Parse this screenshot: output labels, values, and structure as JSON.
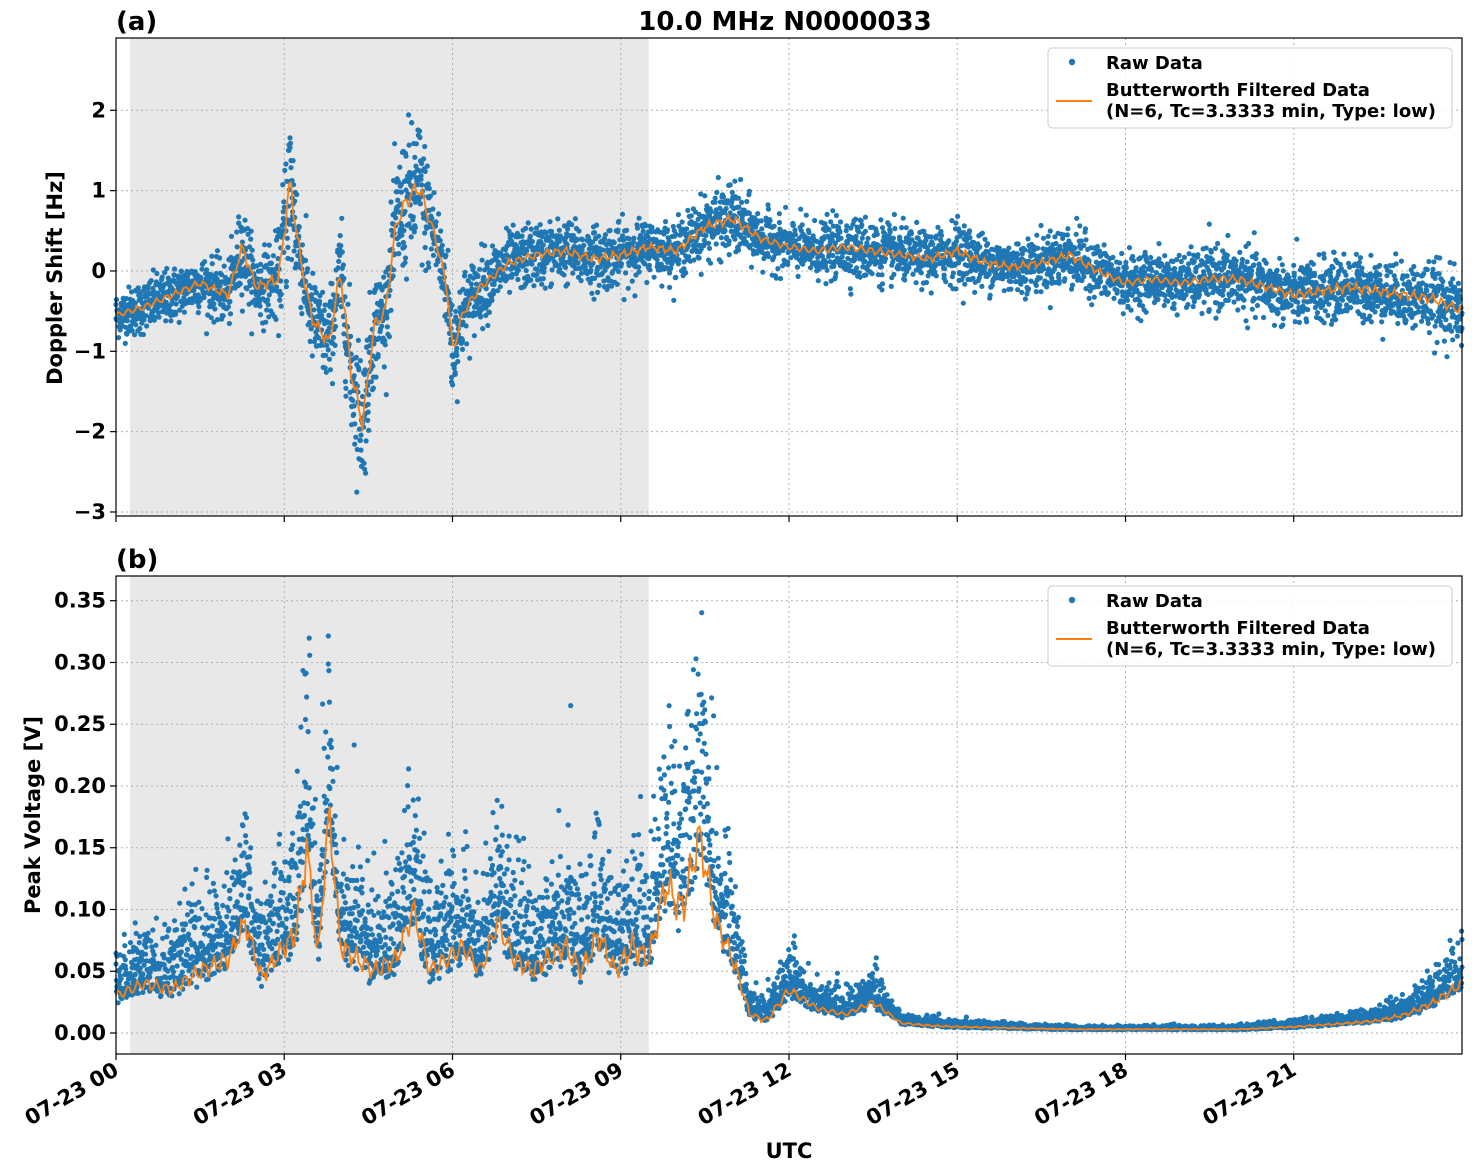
{
  "title": "10.0 MHz N0000033",
  "xlabel": "UTC",
  "colors": {
    "raw": "#1f77b4",
    "filtered": "#ff7f0e",
    "shade": "#e8e8e8"
  },
  "x_ticks": [
    "07-23 00",
    "07-23 03",
    "07-23 06",
    "07-23 09",
    "07-23 12",
    "07-23 15",
    "07-23 18",
    "07-23 21"
  ],
  "legend": {
    "raw": "Raw Data",
    "filtered_line1": "Butterworth Filtered Data",
    "filtered_line2": "(N=6, Tc=3.3333 min, Type: low)"
  },
  "chart_data": [
    {
      "type": "scatter",
      "panel_label": "(a)",
      "ylabel": "Doppler Shift [Hz]",
      "xlim_hours": [
        0,
        24
      ],
      "ylim": [
        -3.05,
        2.9
      ],
      "y_ticks": [
        2,
        1,
        0,
        -1,
        -2,
        -3
      ],
      "y_tick_labels": [
        "2",
        "1",
        "0",
        "−1",
        "−2",
        "−3"
      ],
      "shaded_region_hours": [
        0.25,
        9.5
      ],
      "legend_position": "top-right",
      "series": [
        {
          "name": "Raw Data",
          "style": "points"
        },
        {
          "name": "Butterworth Filtered Data (N=6, Tc=3.3333 min, Type: low)",
          "style": "line"
        }
      ],
      "filtered_profile": {
        "x_hours": [
          0,
          0.5,
          1.0,
          1.5,
          2.0,
          2.25,
          2.5,
          2.9,
          3.1,
          3.3,
          3.5,
          3.8,
          4.0,
          4.2,
          4.4,
          4.6,
          4.8,
          5.0,
          5.2,
          5.4,
          5.7,
          5.9,
          6.0,
          6.2,
          6.5,
          7.0,
          7.5,
          8.0,
          8.5,
          9.0,
          9.5,
          10.0,
          10.5,
          11.0,
          11.5,
          12.0,
          12.5,
          13.0,
          13.5,
          14.0,
          14.5,
          15.0,
          15.5,
          16.0,
          16.5,
          17.0,
          17.5,
          18.0,
          18.5,
          19.0,
          19.5,
          20.0,
          20.5,
          21.0,
          21.5,
          22.0,
          22.5,
          23.0,
          23.5,
          24.0
        ],
        "y": [
          -0.55,
          -0.45,
          -0.3,
          -0.15,
          -0.3,
          0.3,
          -0.2,
          -0.1,
          1.1,
          0.1,
          -0.6,
          -0.9,
          0.0,
          -1.3,
          -1.9,
          -0.7,
          -0.5,
          0.6,
          0.9,
          1.05,
          0.4,
          -0.2,
          -1.0,
          -0.5,
          -0.2,
          0.1,
          0.2,
          0.25,
          0.15,
          0.2,
          0.3,
          0.25,
          0.55,
          0.65,
          0.4,
          0.3,
          0.25,
          0.3,
          0.25,
          0.2,
          0.15,
          0.25,
          0.1,
          0.05,
          0.1,
          0.2,
          0.0,
          -0.15,
          -0.1,
          -0.15,
          -0.1,
          -0.1,
          -0.2,
          -0.3,
          -0.25,
          -0.2,
          -0.25,
          -0.3,
          -0.35,
          -0.5
        ],
        "raw_spread": [
          0.25,
          0.3,
          0.3,
          0.3,
          0.35,
          0.5,
          0.35,
          0.5,
          1.0,
          0.5,
          0.5,
          0.5,
          0.6,
          0.7,
          0.8,
          0.6,
          0.5,
          0.7,
          0.8,
          0.8,
          0.5,
          0.5,
          0.6,
          0.45,
          0.4,
          0.35,
          0.35,
          0.35,
          0.35,
          0.35,
          0.3,
          0.3,
          0.35,
          0.4,
          0.3,
          0.3,
          0.3,
          0.35,
          0.35,
          0.3,
          0.3,
          0.35,
          0.3,
          0.3,
          0.3,
          0.35,
          0.3,
          0.3,
          0.3,
          0.3,
          0.35,
          0.35,
          0.35,
          0.35,
          0.35,
          0.35,
          0.35,
          0.35,
          0.4,
          0.4
        ]
      }
    },
    {
      "type": "scatter",
      "panel_label": "(b)",
      "ylabel": "Peak Voltage [V]",
      "xlim_hours": [
        0,
        24
      ],
      "ylim": [
        -0.017,
        0.37
      ],
      "y_ticks": [
        0.35,
        0.3,
        0.25,
        0.2,
        0.15,
        0.1,
        0.05,
        0.0
      ],
      "y_tick_labels": [
        "0.35",
        "0.30",
        "0.25",
        "0.20",
        "0.15",
        "0.10",
        "0.05",
        "0.00"
      ],
      "shaded_region_hours": [
        0.25,
        9.5
      ],
      "legend_position": "top-right",
      "series": [
        {
          "name": "Raw Data",
          "style": "points"
        },
        {
          "name": "Butterworth Filtered Data (N=6, Tc=3.3333 min, Type: low)",
          "style": "line"
        }
      ],
      "filtered_profile": {
        "x_hours": [
          0,
          0.5,
          1.0,
          1.5,
          2.0,
          2.3,
          2.6,
          3.0,
          3.2,
          3.4,
          3.6,
          3.8,
          4.0,
          4.3,
          4.6,
          5.0,
          5.3,
          5.6,
          5.9,
          6.2,
          6.5,
          6.8,
          7.1,
          7.4,
          7.7,
          8.0,
          8.3,
          8.6,
          8.9,
          9.2,
          9.5,
          9.8,
          10.1,
          10.4,
          10.7,
          11.0,
          11.3,
          11.6,
          12.0,
          12.5,
          13.0,
          13.5,
          14.0,
          14.5,
          15.0,
          16.0,
          17.0,
          18.0,
          19.0,
          20.0,
          21.0,
          22.0,
          22.5,
          23.0,
          23.5,
          24.0
        ],
        "y": [
          0.03,
          0.04,
          0.035,
          0.05,
          0.06,
          0.09,
          0.045,
          0.07,
          0.08,
          0.15,
          0.06,
          0.18,
          0.07,
          0.06,
          0.05,
          0.06,
          0.1,
          0.05,
          0.06,
          0.07,
          0.05,
          0.09,
          0.06,
          0.05,
          0.06,
          0.07,
          0.05,
          0.08,
          0.05,
          0.07,
          0.06,
          0.12,
          0.1,
          0.16,
          0.09,
          0.06,
          0.015,
          0.01,
          0.035,
          0.02,
          0.015,
          0.025,
          0.008,
          0.006,
          0.005,
          0.004,
          0.003,
          0.003,
          0.003,
          0.003,
          0.005,
          0.008,
          0.01,
          0.015,
          0.025,
          0.04
        ],
        "raw_spread": [
          0.03,
          0.035,
          0.035,
          0.05,
          0.05,
          0.06,
          0.04,
          0.06,
          0.07,
          0.12,
          0.06,
          0.1,
          0.06,
          0.06,
          0.05,
          0.06,
          0.08,
          0.05,
          0.06,
          0.06,
          0.05,
          0.07,
          0.06,
          0.05,
          0.06,
          0.07,
          0.05,
          0.07,
          0.05,
          0.07,
          0.06,
          0.1,
          0.1,
          0.12,
          0.08,
          0.05,
          0.015,
          0.02,
          0.03,
          0.015,
          0.012,
          0.02,
          0.006,
          0.005,
          0.004,
          0.003,
          0.002,
          0.002,
          0.002,
          0.002,
          0.004,
          0.006,
          0.008,
          0.012,
          0.02,
          0.03
        ]
      }
    }
  ]
}
